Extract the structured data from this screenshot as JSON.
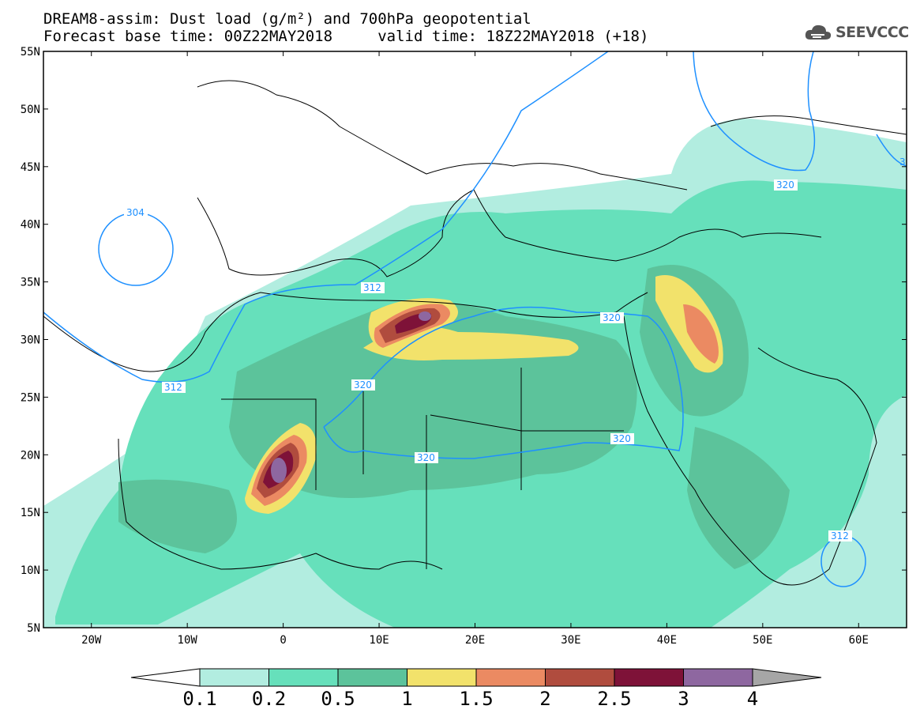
{
  "title": {
    "line1": "DREAM8-assim: Dust load (g/m²) and 700hPa geopotential",
    "line2": "Forecast base time: 00Z22MAY2018     valid time: 18Z22MAY2018 (+18)"
  },
  "logo": {
    "text": "SEEVCCC",
    "icon": "cloud-logo-icon"
  },
  "map": {
    "projection": "lat-lon",
    "lat_labels": [
      "55N",
      "50N",
      "45N",
      "40N",
      "35N",
      "30N",
      "25N",
      "20N",
      "15N",
      "10N",
      "5N"
    ],
    "lon_labels": [
      "20W",
      "10W",
      "0",
      "10E",
      "20E",
      "30E",
      "40E",
      "50E",
      "60E"
    ],
    "lat_range": [
      5,
      55
    ],
    "lon_range": [
      -25,
      65
    ],
    "contour_labels": [
      "304",
      "312",
      "312",
      "320",
      "320",
      "320",
      "320",
      "320",
      "312",
      "3"
    ]
  },
  "legend": {
    "labels": [
      "0.1",
      "0.2",
      "0.5",
      "1",
      "1.5",
      "2",
      "2.5",
      "3",
      "4"
    ],
    "colors": [
      "#ffffff",
      "#b2ede0",
      "#66e0bb",
      "#5cc39b",
      "#f2e26b",
      "#eb8a62",
      "#b04c3e",
      "#7e1238",
      "#8e67a0",
      "#a6a6a6"
    ]
  },
  "colors": {
    "contour": "#1e90ff",
    "border": "#000000"
  }
}
